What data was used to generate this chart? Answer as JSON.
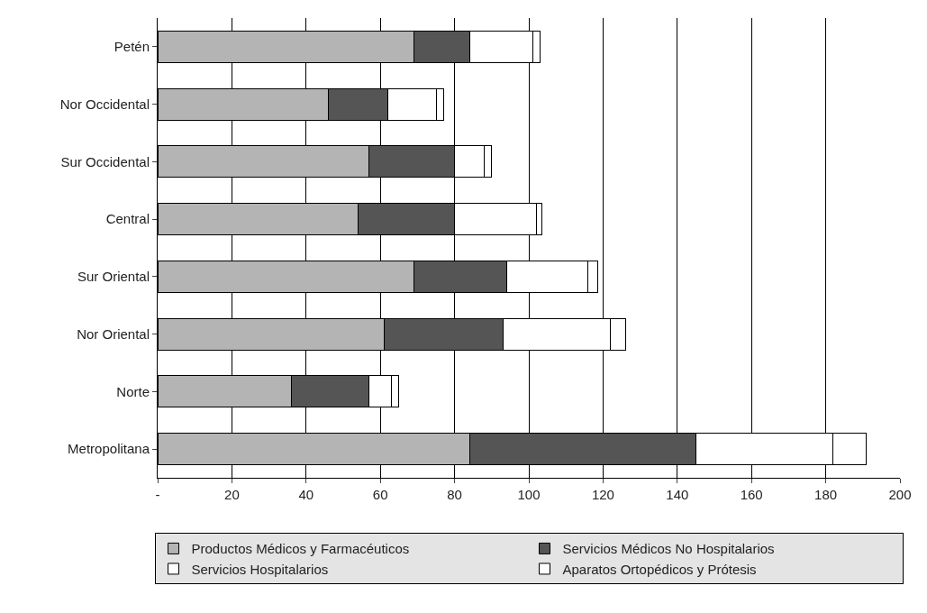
{
  "chart_data": {
    "type": "bar",
    "orientation": "horizontal",
    "stacked": true,
    "categories": [
      "Petén",
      "Nor Occidental",
      "Sur Occidental",
      "Central",
      "Sur Oriental",
      "Nor Oriental",
      "Norte",
      "Metropolitana"
    ],
    "series": [
      {
        "name": "Productos Médicos y Farmacéuticos",
        "color": "#b4b4b4",
        "values": [
          69,
          46,
          57,
          54,
          69,
          61,
          36,
          84
        ]
      },
      {
        "name": "Servicios Médicos No Hospitalarios",
        "color": "#555555",
        "values": [
          15,
          16,
          23,
          26,
          25,
          32,
          21,
          61
        ]
      },
      {
        "name": "Servicios Hospitalarios",
        "color": "#ffffff",
        "values": [
          17,
          13,
          8,
          22,
          22,
          29,
          6,
          37
        ]
      },
      {
        "name": "Aparatos Ortopédicos y Prótesis",
        "color": "#ffffff",
        "values": [
          2,
          2,
          2,
          1.5,
          2.5,
          4,
          2,
          9
        ]
      }
    ],
    "xlim": [
      0,
      200
    ],
    "xticks": [
      {
        "value": 0,
        "label": "-"
      },
      20,
      40,
      60,
      80,
      100,
      120,
      140,
      160,
      180,
      200
    ],
    "grid": "x",
    "legend": "bottom"
  }
}
